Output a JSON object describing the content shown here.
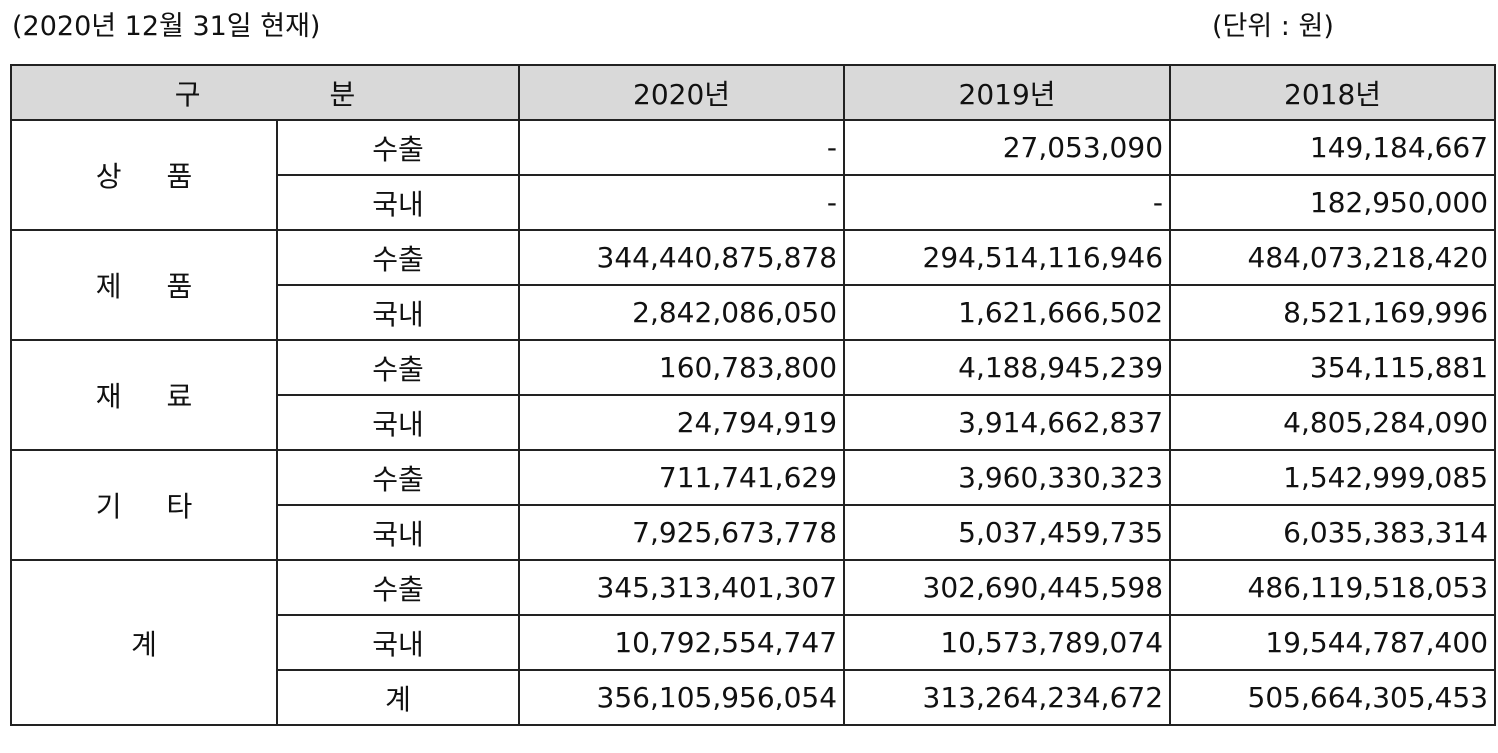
{
  "header": {
    "note": "(2020년 12월 31일 현재)",
    "unit": "(단위 : 원)"
  },
  "table": {
    "header": [
      "구 분",
      "2020년",
      "2019년",
      "2018년"
    ],
    "groups": [
      {
        "label": "상 품",
        "rows": [
          {
            "sub": "수출",
            "values": [
              "-",
              "27,053,090",
              "149,184,667"
            ]
          },
          {
            "sub": "국내",
            "values": [
              "-",
              "-",
              "182,950,000"
            ]
          }
        ]
      },
      {
        "label": "제 품",
        "rows": [
          {
            "sub": "수출",
            "values": [
              "344,440,875,878",
              "294,514,116,946",
              "484,073,218,420"
            ]
          },
          {
            "sub": "국내",
            "values": [
              "2,842,086,050",
              "1,621,666,502",
              "8,521,169,996"
            ]
          }
        ]
      },
      {
        "label": "재 료",
        "rows": [
          {
            "sub": "수출",
            "values": [
              "160,783,800",
              "4,188,945,239",
              "354,115,881"
            ]
          },
          {
            "sub": "국내",
            "values": [
              "24,794,919",
              "3,914,662,837",
              "4,805,284,090"
            ]
          }
        ]
      },
      {
        "label": "기 타",
        "rows": [
          {
            "sub": "수출",
            "values": [
              "711,741,629",
              "3,960,330,323",
              "1,542,999,085"
            ]
          },
          {
            "sub": "국내",
            "values": [
              "7,925,673,778",
              "5,037,459,735",
              "6,035,383,314"
            ]
          }
        ]
      },
      {
        "label": "계",
        "rows": [
          {
            "sub": "수출",
            "values": [
              "345,313,401,307",
              "302,690,445,598",
              "486,119,518,053"
            ]
          },
          {
            "sub": "국내",
            "values": [
              "10,792,554,747",
              "10,573,789,074",
              "19,544,787,400"
            ]
          },
          {
            "sub": "계",
            "values": [
              "356,105,956,054",
              "313,264,234,672",
              "505,664,305,453"
            ]
          }
        ]
      }
    ]
  }
}
